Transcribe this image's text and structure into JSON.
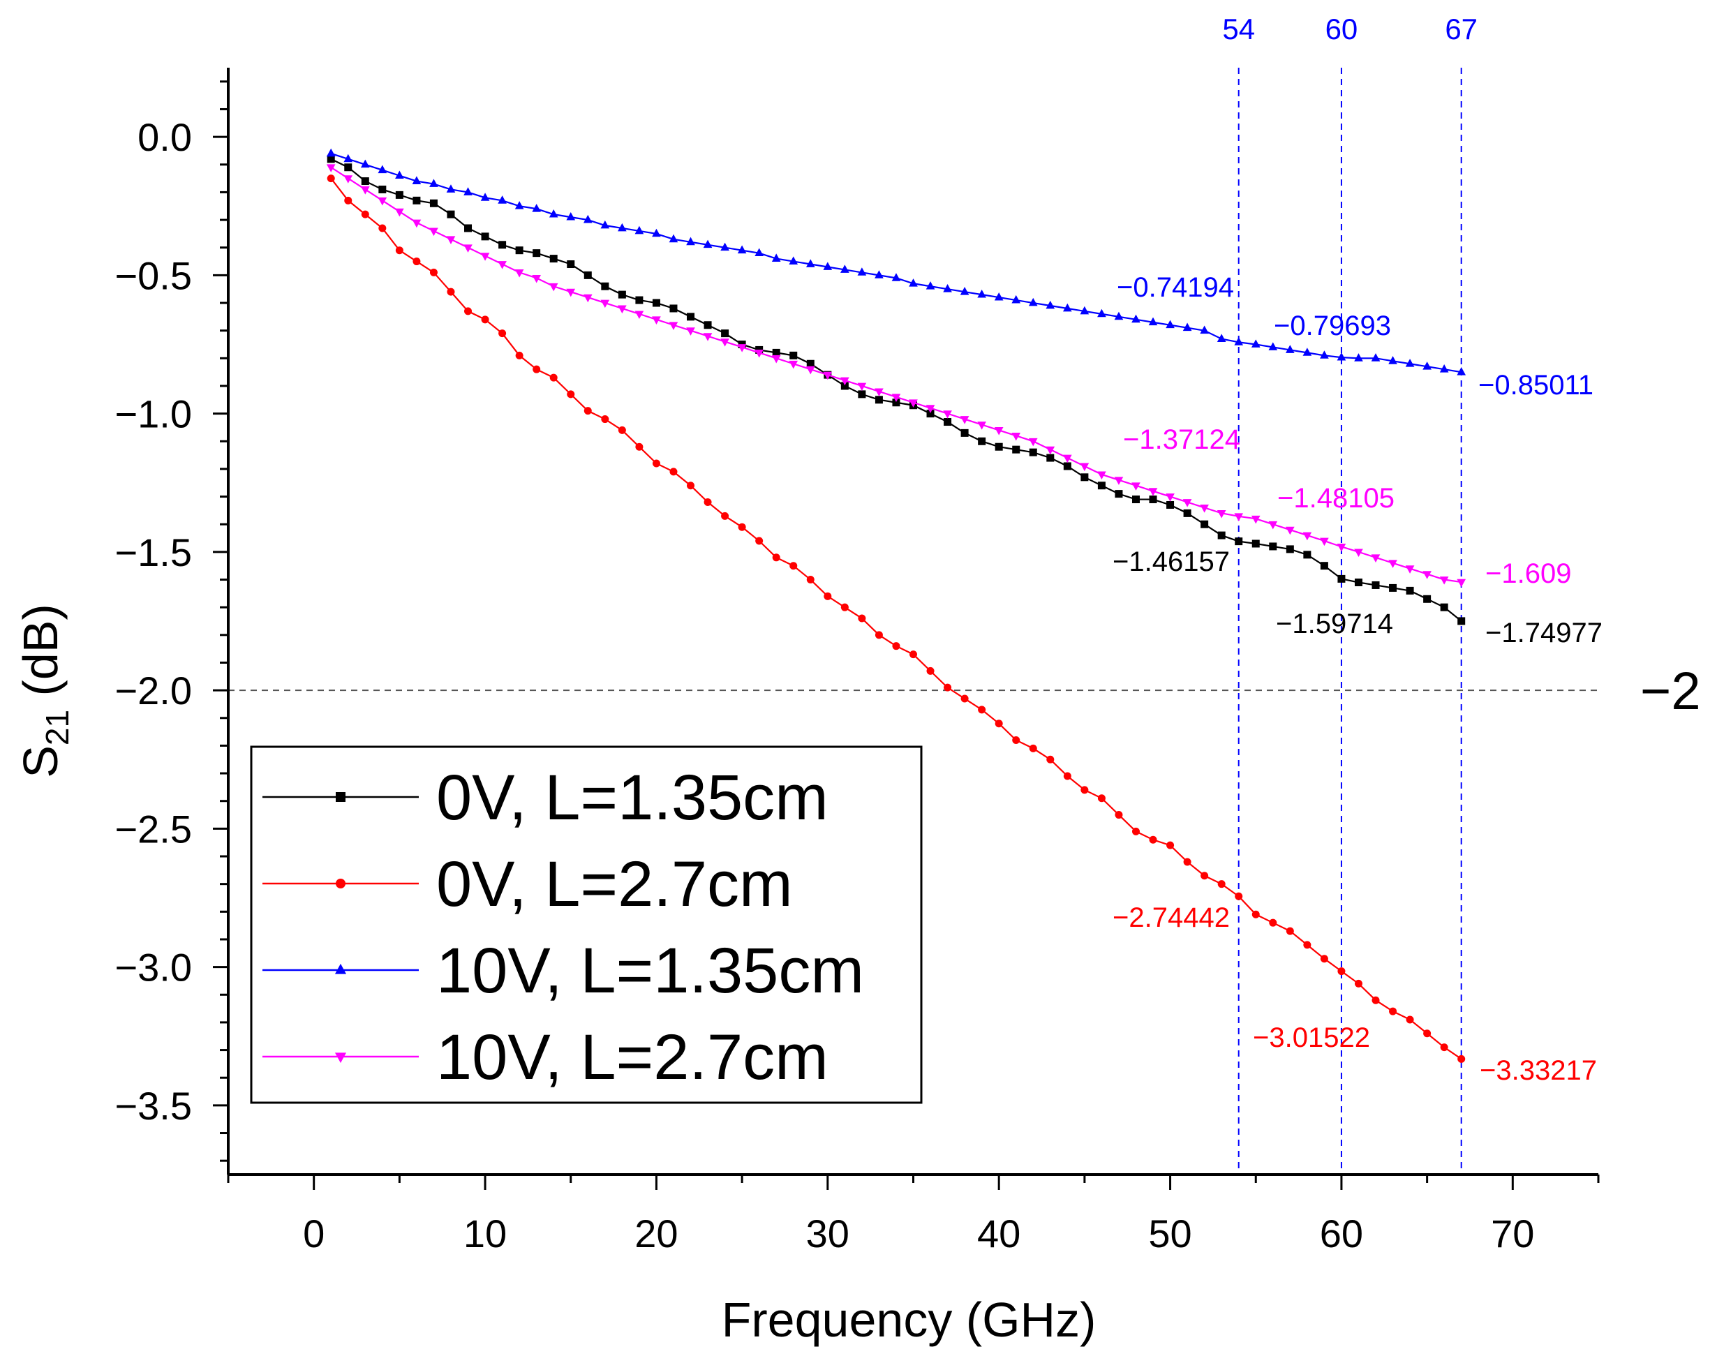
{
  "chart_data": {
    "type": "line",
    "xlabel": "Frequency (GHz)",
    "ylabel_main": "S",
    "ylabel_sub": "21",
    "ylabel_unit": " (dB)",
    "xlim": [
      -5,
      75
    ],
    "ylim": [
      -3.75,
      0.25
    ],
    "x_ticks": [
      0,
      10,
      20,
      30,
      40,
      50,
      60,
      70
    ],
    "x_tick_labels": [
      "0",
      "10",
      "20",
      "30",
      "40",
      "50",
      "60",
      "70"
    ],
    "y_ticks": [
      0.0,
      -0.5,
      -1.0,
      -1.5,
      -2.0,
      -2.5,
      -3.0,
      -3.5
    ],
    "y_tick_labels": [
      "0.0",
      "-0.5",
      "-1.0",
      "-1.5",
      "-2.0",
      "-2.5",
      "-3.0",
      "-3.5"
    ],
    "reference_line": {
      "y": -2,
      "label": "−2"
    },
    "vertical_markers": [
      {
        "x": 54,
        "label": "54"
      },
      {
        "x": 60,
        "label": "60"
      },
      {
        "x": 67,
        "label": "67"
      }
    ],
    "x_start": 1,
    "x_step": 1,
    "series": [
      {
        "name": "0V, L=1.35cm",
        "color": "#000000",
        "marker": "square",
        "values": [
          -0.08,
          -0.11,
          -0.16,
          -0.19,
          -0.21,
          -0.23,
          -0.24,
          -0.28,
          -0.33,
          -0.36,
          -0.39,
          -0.41,
          -0.42,
          -0.44,
          -0.46,
          -0.5,
          -0.54,
          -0.57,
          -0.59,
          -0.6,
          -0.62,
          -0.65,
          -0.68,
          -0.71,
          -0.75,
          -0.77,
          -0.78,
          -0.79,
          -0.82,
          -0.86,
          -0.9,
          -0.93,
          -0.95,
          -0.96,
          -0.97,
          -1.0,
          -1.03,
          -1.07,
          -1.1,
          -1.12,
          -1.13,
          -1.14,
          -1.16,
          -1.19,
          -1.23,
          -1.26,
          -1.29,
          -1.31,
          -1.31,
          -1.33,
          -1.36,
          -1.4,
          -1.44,
          -1.46157,
          -1.47,
          -1.48,
          -1.49,
          -1.51,
          -1.55,
          -1.59714,
          -1.61,
          -1.62,
          -1.63,
          -1.64,
          -1.67,
          -1.7,
          -1.74977
        ],
        "annotations": [
          {
            "x": 54,
            "y": -1.46157,
            "label": "−1.46157"
          },
          {
            "x": 60,
            "y": -1.59714,
            "label": "−1.59714"
          },
          {
            "x": 67,
            "y": -1.74977,
            "label": "−1.74977"
          }
        ]
      },
      {
        "name": "0V, L=2.7cm",
        "color": "#ff0000",
        "marker": "circle",
        "values": [
          -0.15,
          -0.23,
          -0.28,
          -0.33,
          -0.41,
          -0.45,
          -0.49,
          -0.56,
          -0.63,
          -0.66,
          -0.71,
          -0.79,
          -0.84,
          -0.87,
          -0.93,
          -0.99,
          -1.02,
          -1.06,
          -1.12,
          -1.18,
          -1.21,
          -1.26,
          -1.32,
          -1.37,
          -1.41,
          -1.46,
          -1.52,
          -1.55,
          -1.6,
          -1.66,
          -1.7,
          -1.74,
          -1.8,
          -1.84,
          -1.87,
          -1.93,
          -1.99,
          -2.03,
          -2.07,
          -2.12,
          -2.18,
          -2.21,
          -2.25,
          -2.31,
          -2.36,
          -2.39,
          -2.45,
          -2.51,
          -2.54,
          -2.56,
          -2.62,
          -2.67,
          -2.7,
          -2.74442,
          -2.81,
          -2.84,
          -2.87,
          -2.92,
          -2.97,
          -3.01522,
          -3.06,
          -3.12,
          -3.16,
          -3.19,
          -3.24,
          -3.29,
          -3.33217
        ],
        "annotations": [
          {
            "x": 54,
            "y": -2.74442,
            "label": "−2.74442"
          },
          {
            "x": 60,
            "y": -3.01522,
            "label": "−3.01522"
          },
          {
            "x": 67,
            "y": -3.33217,
            "label": "−3.33217"
          }
        ]
      },
      {
        "name": "10V, L=1.35cm",
        "color": "#0000ff",
        "marker": "triangle-up",
        "values": [
          -0.06,
          -0.08,
          -0.1,
          -0.12,
          -0.14,
          -0.16,
          -0.17,
          -0.19,
          -0.2,
          -0.22,
          -0.23,
          -0.25,
          -0.26,
          -0.28,
          -0.29,
          -0.3,
          -0.32,
          -0.33,
          -0.34,
          -0.35,
          -0.37,
          -0.38,
          -0.39,
          -0.4,
          -0.41,
          -0.42,
          -0.44,
          -0.45,
          -0.46,
          -0.47,
          -0.48,
          -0.49,
          -0.5,
          -0.51,
          -0.53,
          -0.54,
          -0.55,
          -0.56,
          -0.57,
          -0.58,
          -0.59,
          -0.6,
          -0.61,
          -0.62,
          -0.63,
          -0.64,
          -0.65,
          -0.66,
          -0.67,
          -0.68,
          -0.69,
          -0.7,
          -0.73,
          -0.74194,
          -0.75,
          -0.76,
          -0.77,
          -0.78,
          -0.79,
          -0.79693,
          -0.8,
          -0.8,
          -0.81,
          -0.82,
          -0.83,
          -0.84,
          -0.85011
        ],
        "annotations": [
          {
            "x": 54,
            "y": -0.74194,
            "label": "−0.74194"
          },
          {
            "x": 60,
            "y": -0.79693,
            "label": "−0.79693"
          },
          {
            "x": 67,
            "y": -0.85011,
            "label": "−0.85011"
          }
        ]
      },
      {
        "name": "10V, L=2.7cm",
        "color": "#ff00ff",
        "marker": "triangle-down",
        "values": [
          -0.11,
          -0.15,
          -0.19,
          -0.23,
          -0.27,
          -0.31,
          -0.34,
          -0.37,
          -0.4,
          -0.43,
          -0.46,
          -0.49,
          -0.51,
          -0.54,
          -0.56,
          -0.58,
          -0.6,
          -0.62,
          -0.64,
          -0.66,
          -0.68,
          -0.7,
          -0.72,
          -0.74,
          -0.76,
          -0.78,
          -0.8,
          -0.82,
          -0.84,
          -0.86,
          -0.88,
          -0.9,
          -0.92,
          -0.94,
          -0.96,
          -0.98,
          -1.0,
          -1.02,
          -1.04,
          -1.06,
          -1.08,
          -1.1,
          -1.13,
          -1.16,
          -1.19,
          -1.22,
          -1.24,
          -1.26,
          -1.28,
          -1.3,
          -1.32,
          -1.34,
          -1.36,
          -1.37124,
          -1.38,
          -1.4,
          -1.42,
          -1.44,
          -1.46,
          -1.48105,
          -1.5,
          -1.52,
          -1.54,
          -1.56,
          -1.58,
          -1.6,
          -1.609
        ],
        "annotations": [
          {
            "x": 54,
            "y": -1.37124,
            "label": "−1.37124"
          },
          {
            "x": 60,
            "y": -1.48105,
            "label": "−1.48105"
          },
          {
            "x": 67,
            "y": -1.609,
            "label": "−1.609"
          }
        ]
      }
    ]
  }
}
